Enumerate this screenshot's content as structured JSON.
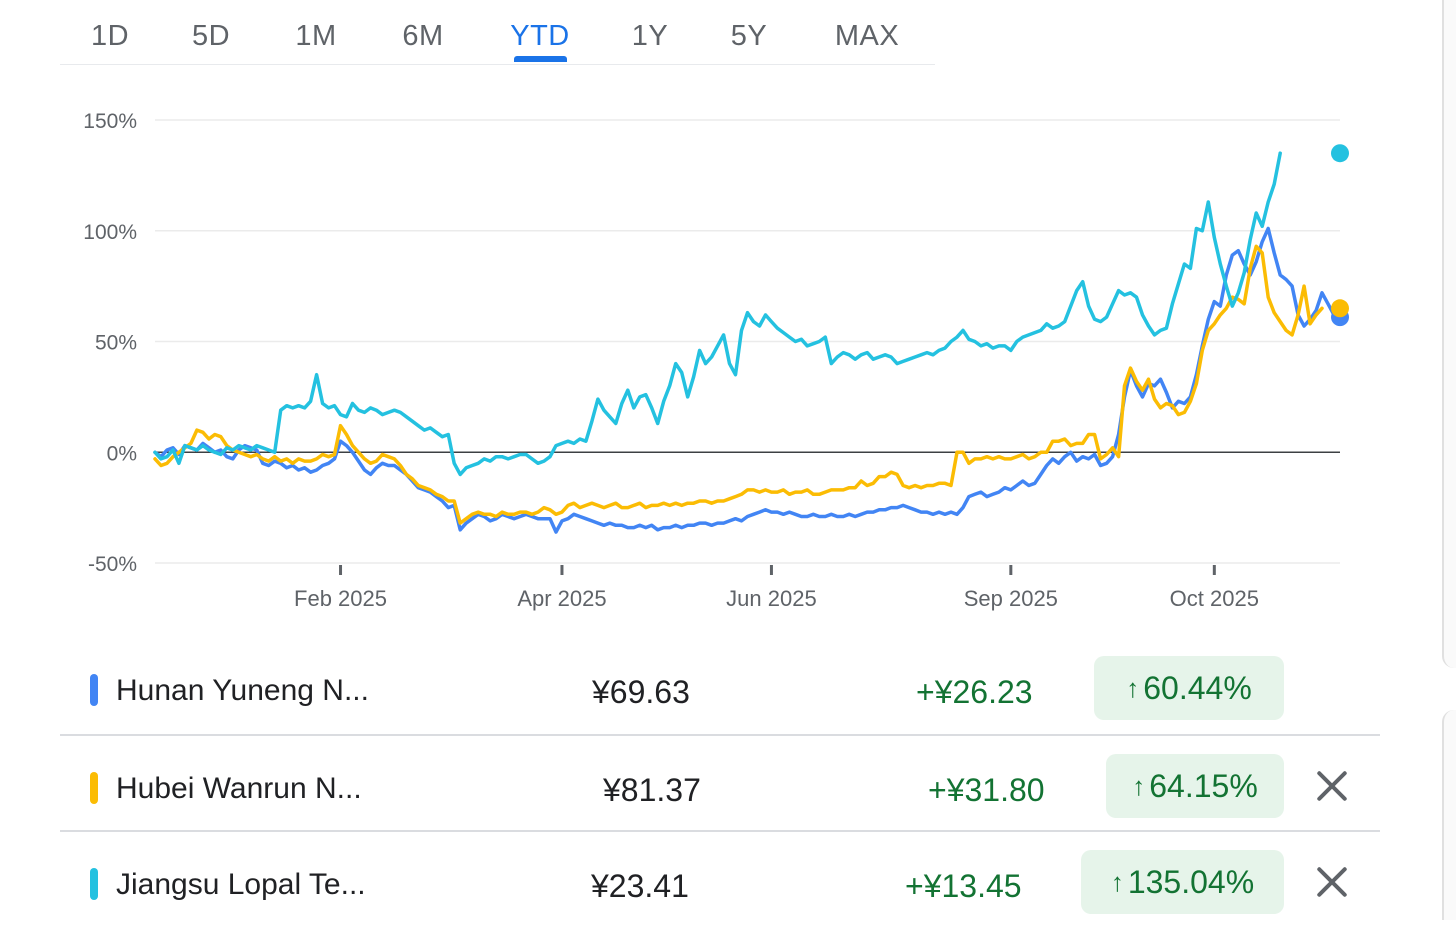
{
  "range_tabs": [
    "1D",
    "5D",
    "1M",
    "6M",
    "YTD",
    "1Y",
    "5Y",
    "MAX"
  ],
  "active_tab": "YTD",
  "chart_data": {
    "type": "line",
    "yunit": "%",
    "ylim": [
      -50,
      150
    ],
    "yticks": [
      "150%",
      "100%",
      "50%",
      "0%",
      "-50%"
    ],
    "yticks_values": [
      150,
      100,
      50,
      0,
      -50
    ],
    "xticks": [
      "Feb 2025",
      "Apr 2025",
      "Jun 2025",
      "Sep 2025",
      "Oct 2025"
    ],
    "xticks_index": [
      31,
      68,
      103,
      143,
      177
    ],
    "baseline": 0,
    "grid": true,
    "series": [
      {
        "name": "Hunan Yuneng N...",
        "color": "#4285f4",
        "values": [
          0,
          -2,
          1,
          2,
          -1,
          3,
          2,
          1,
          4,
          2,
          0,
          1,
          -2,
          -3,
          1,
          3,
          2,
          1,
          -5,
          -6,
          -4,
          -5,
          -7,
          -6,
          -8,
          -7,
          -9,
          -8,
          -6,
          -5,
          -3,
          5,
          3,
          0,
          -4,
          -8,
          -10,
          -7,
          -5,
          -6,
          -6,
          -8,
          -10,
          -13,
          -16,
          -17,
          -18,
          -20,
          -22,
          -25,
          -24,
          -35,
          -32,
          -30,
          -28,
          -29,
          -31,
          -30,
          -28,
          -29,
          -30,
          -29,
          -28,
          -29,
          -30,
          -30,
          -30,
          -36,
          -31,
          -30,
          -28,
          -29,
          -30,
          -31,
          -32,
          -33,
          -32,
          -33,
          -33,
          -34,
          -34,
          -33,
          -34,
          -33,
          -35,
          -34,
          -34,
          -33,
          -34,
          -33,
          -33,
          -32,
          -32,
          -33,
          -32,
          -32,
          -31,
          -30,
          -31,
          -29,
          -28,
          -27,
          -26,
          -27,
          -27,
          -28,
          -27,
          -28,
          -29,
          -29,
          -28,
          -29,
          -29,
          -28,
          -29,
          -29,
          -28,
          -29,
          -28,
          -27,
          -27,
          -26,
          -26,
          -25,
          -25,
          -24,
          -25,
          -26,
          -27,
          -27,
          -28,
          -27,
          -28,
          -27,
          -28,
          -25,
          -20,
          -19,
          -18,
          -20,
          -19,
          -18,
          -16,
          -17,
          -15,
          -13,
          -15,
          -14,
          -10,
          -6,
          -3,
          -5,
          -2,
          0,
          -4,
          -2,
          -3,
          -1,
          -6,
          -5,
          -2,
          8,
          25,
          37,
          30,
          25,
          31,
          30,
          33,
          27,
          20,
          23,
          22,
          25,
          35,
          48,
          60,
          68,
          66,
          80,
          89,
          91,
          85,
          80,
          86,
          95,
          101,
          90,
          80,
          78,
          75,
          62,
          57,
          60,
          64,
          72,
          67,
          62,
          61
        ]
      },
      {
        "name": "Hubei Wanrun N...",
        "color": "#fbbc04",
        "values": [
          -3,
          -6,
          -5,
          -2,
          0,
          2,
          4,
          10,
          9,
          6,
          8,
          7,
          3,
          1,
          0,
          -1,
          -2,
          -1,
          -3,
          -4,
          -2,
          -4,
          -3,
          -5,
          -3,
          -4,
          -4,
          -3,
          -1,
          -2,
          -1,
          12,
          8,
          3,
          0,
          -3,
          -5,
          -4,
          -1,
          -2,
          -3,
          -6,
          -10,
          -12,
          -15,
          -16,
          -17,
          -19,
          -20,
          -22,
          -22,
          -32,
          -30,
          -28,
          -27,
          -28,
          -28,
          -29,
          -27,
          -28,
          -28,
          -27,
          -27,
          -28,
          -27,
          -25,
          -26,
          -28,
          -27,
          -24,
          -23,
          -25,
          -24,
          -23,
          -24,
          -25,
          -24,
          -23,
          -25,
          -25,
          -24,
          -23,
          -25,
          -24,
          -24,
          -23,
          -24,
          -23,
          -24,
          -23,
          -23,
          -22,
          -22,
          -23,
          -22,
          -22,
          -21,
          -20,
          -19,
          -17,
          -17,
          -18,
          -17,
          -18,
          -18,
          -17,
          -19,
          -18,
          -18,
          -17,
          -19,
          -19,
          -18,
          -17,
          -17,
          -17,
          -16,
          -16,
          -13,
          -15,
          -14,
          -11,
          -11,
          -9,
          -10,
          -15,
          -16,
          -15,
          -16,
          -15,
          -15,
          -14,
          -14,
          -15,
          0,
          0,
          -5,
          -3,
          -3,
          -2,
          -3,
          -2,
          -3,
          -3,
          -2,
          -1,
          -3,
          -2,
          0,
          0,
          5,
          5,
          6,
          3,
          4,
          4,
          8,
          8,
          -3,
          -1,
          2,
          -2,
          30,
          38,
          32,
          28,
          33,
          24,
          20,
          22,
          21,
          17,
          18,
          23,
          31,
          46,
          55,
          58,
          62,
          65,
          70,
          69,
          67,
          83,
          93,
          90,
          70,
          63,
          59,
          55,
          53,
          62,
          75,
          58,
          62,
          65
        ]
      },
      {
        "name": "Jiangsu Lopal Te...",
        "color": "#24c1e0",
        "values": [
          0,
          -3,
          -2,
          1,
          -5,
          3,
          2,
          1,
          3,
          1,
          0,
          -1,
          2,
          1,
          3,
          2,
          1,
          3,
          2,
          1,
          0,
          19,
          21,
          20,
          21,
          20,
          23,
          35,
          22,
          20,
          21,
          17,
          16,
          22,
          19,
          18,
          20,
          19,
          17,
          18,
          19,
          18,
          16,
          14,
          12,
          10,
          11,
          9,
          7,
          8,
          -5,
          -10,
          -7,
          -6,
          -5,
          -3,
          -4,
          -2,
          -2,
          -3,
          -2,
          -1,
          -1,
          -3,
          -5,
          -4,
          -2,
          3,
          4,
          5,
          4,
          6,
          5,
          14,
          24,
          19,
          16,
          13,
          22,
          28,
          20,
          25,
          26,
          20,
          13,
          23,
          30,
          40,
          36,
          25,
          34,
          46,
          40,
          43,
          48,
          53,
          40,
          35,
          55,
          63,
          59,
          57,
          62,
          59,
          56,
          54,
          52,
          50,
          51,
          48,
          49,
          50,
          52,
          40,
          43,
          45,
          44,
          42,
          44,
          45,
          42,
          43,
          44,
          43,
          40,
          41,
          42,
          43,
          44,
          45,
          44,
          46,
          47,
          50,
          52,
          55,
          51,
          50,
          48,
          49,
          47,
          48,
          48,
          46,
          50,
          52,
          53,
          54,
          55,
          58,
          56,
          57,
          59,
          66,
          73,
          77,
          66,
          60,
          59,
          61,
          67,
          73,
          71,
          72,
          70,
          62,
          57,
          53,
          55,
          56,
          67,
          76,
          85,
          83,
          101,
          100,
          113,
          97,
          85,
          75,
          66,
          72,
          81,
          96,
          108,
          102,
          113,
          121,
          135
        ]
      }
    ]
  },
  "rows": [
    {
      "name": "Hunan Yuneng N...",
      "price": "¥69.63",
      "change": "+¥26.23",
      "pct": "60.44%",
      "color": "#4285f4",
      "removable": false
    },
    {
      "name": "Hubei Wanrun N...",
      "price": "¥81.37",
      "change": "+¥31.80",
      "pct": "64.15%",
      "color": "#fbbc04",
      "removable": true
    },
    {
      "name": "Jiangsu Lopal Te...",
      "price": "¥23.41",
      "change": "+¥13.45",
      "pct": "135.04%",
      "color": "#24c1e0",
      "removable": true
    }
  ],
  "icons": {
    "arrow": "↑"
  }
}
